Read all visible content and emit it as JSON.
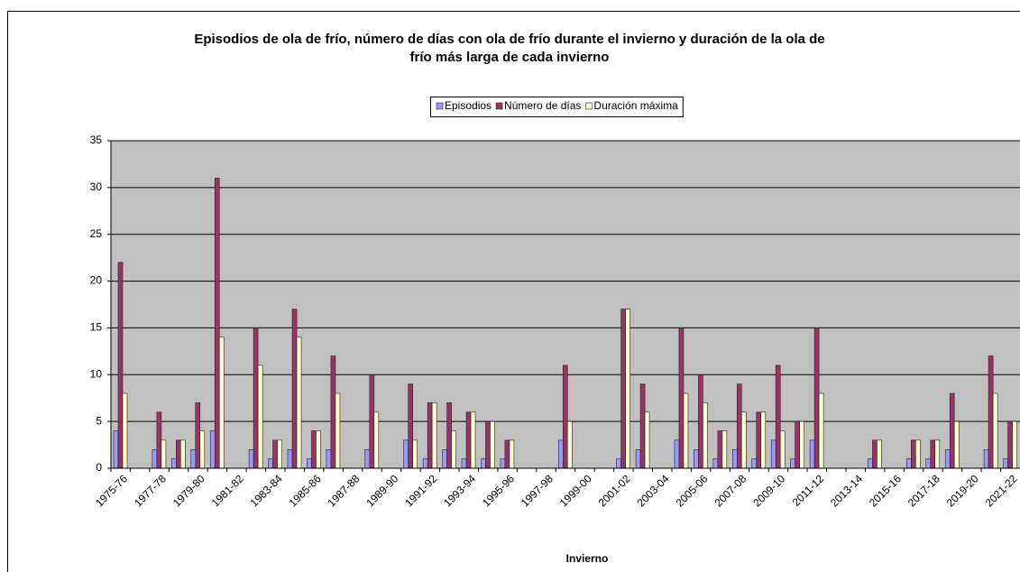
{
  "chart_data": {
    "type": "bar",
    "title": "Episodios de ola de frío, número de días con ola de frío durante el invierno y duración de la ola de frío más larga de cada invierno",
    "x_label": "Invierno",
    "categories": [
      "1975-76",
      null,
      "1977-78",
      null,
      "1979-80",
      null,
      "1981-82",
      null,
      "1983-84",
      null,
      "1985-86",
      null,
      "1987-88",
      null,
      "1989-90",
      null,
      "1991-92",
      null,
      "1993-94",
      null,
      "1995-96",
      null,
      "1997-98",
      null,
      "1999-00",
      null,
      "2001-02",
      null,
      "2003-04",
      null,
      "2005-06",
      null,
      "2007-08",
      null,
      "2009-10",
      null,
      "2011-12",
      null,
      "2013-14",
      null,
      "2015-16",
      null,
      "2017-18",
      null,
      "2019-20",
      null,
      "2021-22"
    ],
    "series": [
      {
        "name": "Episodios",
        "color": "#9999ff",
        "values": [
          4,
          0,
          2,
          1,
          2,
          4,
          0,
          2,
          1,
          2,
          1,
          2,
          0,
          2,
          0,
          3,
          1,
          2,
          1,
          1,
          1,
          0,
          0,
          3,
          0,
          0,
          1,
          2,
          0,
          3,
          2,
          1,
          2,
          1,
          3,
          1,
          3,
          0,
          0,
          1,
          0,
          1,
          1,
          2,
          0,
          2,
          1
        ]
      },
      {
        "name": "Número de días",
        "color": "#993366",
        "values": [
          22,
          0,
          6,
          3,
          7,
          31,
          0,
          15,
          3,
          17,
          4,
          12,
          0,
          10,
          0,
          9,
          7,
          7,
          6,
          5,
          3,
          0,
          0,
          11,
          0,
          0,
          17,
          9,
          0,
          15,
          10,
          4,
          9,
          6,
          11,
          5,
          15,
          0,
          0,
          3,
          0,
          3,
          3,
          8,
          0,
          12,
          5
        ]
      },
      {
        "name": "Duración máxima",
        "color": "#ffffcc",
        "values": [
          8,
          0,
          3,
          3,
          4,
          14,
          0,
          11,
          3,
          14,
          4,
          8,
          0,
          6,
          0,
          3,
          7,
          4,
          6,
          5,
          3,
          0,
          0,
          5,
          0,
          0,
          17,
          6,
          0,
          8,
          7,
          4,
          6,
          6,
          4,
          5,
          8,
          0,
          0,
          3,
          0,
          3,
          3,
          5,
          0,
          8,
          5
        ]
      }
    ],
    "ylim": [
      0,
      35
    ],
    "yticks": [
      0,
      5,
      10,
      15,
      20,
      25,
      30,
      35
    ],
    "grid": true,
    "legend": "top"
  }
}
